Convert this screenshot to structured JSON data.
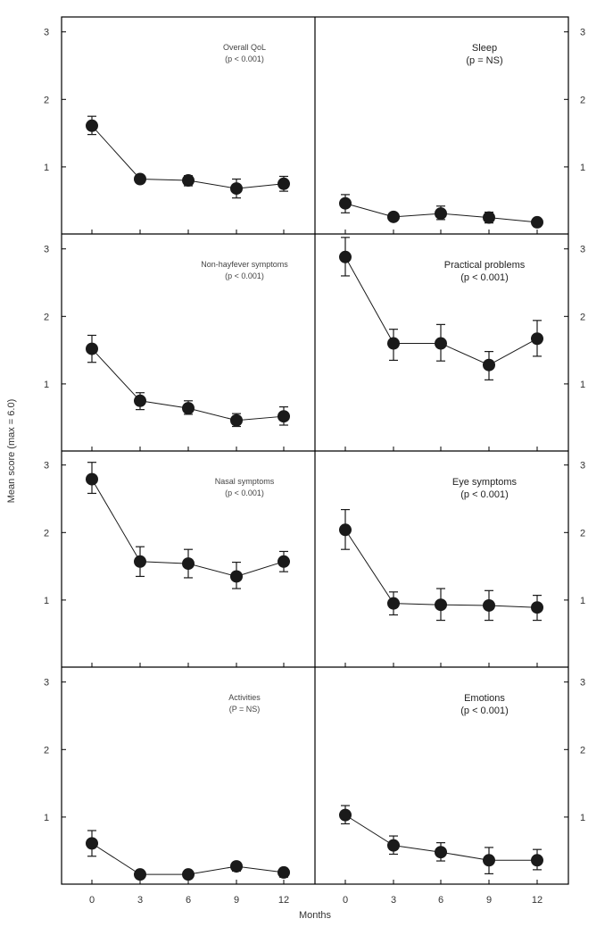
{
  "colors": {
    "ink": "#1a1a1a",
    "frame": "#000000"
  },
  "chart_data": {
    "type": "line",
    "xlabel": "Months",
    "ylabel": "Mean score (max = 6.0)",
    "x": [
      0,
      3,
      6,
      9,
      12
    ],
    "x_tick_labels": [
      "0",
      "3",
      "6",
      "9",
      "12"
    ],
    "y_tick_labels": [
      "1",
      "2",
      "3"
    ],
    "y_ticks": [
      1,
      2,
      3
    ],
    "ylim": [
      0,
      3.2
    ],
    "layout": "4 rows x 2 columns, shared axes",
    "panels": [
      {
        "title": "Overall QoL",
        "stat": "(p < 0.001)",
        "column": "left",
        "row": 1,
        "values": [
          1.61,
          0.82,
          0.8,
          0.68,
          0.75
        ],
        "err_low": [
          1.48,
          0.78,
          0.72,
          0.54,
          0.64
        ],
        "err_high": [
          1.75,
          0.86,
          0.87,
          0.82,
          0.86
        ]
      },
      {
        "title": "Sleep",
        "stat": "(p = NS)",
        "column": "right",
        "row": 1,
        "values": [
          0.46,
          0.26,
          0.31,
          0.25,
          0.18
        ],
        "err_low": [
          0.32,
          0.22,
          0.22,
          0.17,
          0.15
        ],
        "err_high": [
          0.59,
          0.3,
          0.42,
          0.33,
          0.21
        ]
      },
      {
        "title": "Non-hayfever symptoms",
        "stat": "(p < 0.001)",
        "column": "left",
        "row": 2,
        "values": [
          1.52,
          0.75,
          0.64,
          0.46,
          0.52
        ],
        "err_low": [
          1.32,
          0.62,
          0.55,
          0.37,
          0.39
        ],
        "err_high": [
          1.72,
          0.87,
          0.75,
          0.56,
          0.66
        ]
      },
      {
        "title": "Practical problems",
        "stat": "(p < 0.001)",
        "column": "right",
        "row": 2,
        "values": [
          2.88,
          1.6,
          1.6,
          1.28,
          1.67
        ],
        "err_low": [
          2.6,
          1.35,
          1.34,
          1.06,
          1.41
        ],
        "err_high": [
          3.17,
          1.81,
          1.88,
          1.48,
          1.94
        ]
      },
      {
        "title": "Nasal symptoms",
        "stat": "(p < 0.001)",
        "column": "left",
        "row": 3,
        "values": [
          2.79,
          1.57,
          1.54,
          1.35,
          1.57
        ],
        "err_low": [
          2.58,
          1.35,
          1.33,
          1.17,
          1.42
        ],
        "err_high": [
          3.04,
          1.79,
          1.75,
          1.56,
          1.72
        ]
      },
      {
        "title": "Eye symptoms",
        "stat": "(p < 0.001)",
        "column": "right",
        "row": 3,
        "values": [
          2.04,
          0.95,
          0.93,
          0.92,
          0.89
        ],
        "err_low": [
          1.75,
          0.78,
          0.7,
          0.7,
          0.7
        ],
        "err_high": [
          2.34,
          1.12,
          1.17,
          1.14,
          1.07
        ]
      },
      {
        "title": "Activities",
        "stat": "(P = NS)",
        "column": "left",
        "row": 4,
        "values": [
          0.61,
          0.15,
          0.15,
          0.27,
          0.18
        ],
        "err_low": [
          0.42,
          0.13,
          0.13,
          0.2,
          0.11
        ],
        "err_high": [
          0.8,
          0.17,
          0.17,
          0.33,
          0.24
        ]
      },
      {
        "title": "Emotions",
        "stat": "(p < 0.001)",
        "column": "right",
        "row": 4,
        "values": [
          1.03,
          0.58,
          0.48,
          0.36,
          0.36
        ],
        "err_low": [
          0.9,
          0.45,
          0.35,
          0.16,
          0.22
        ],
        "err_high": [
          1.17,
          0.72,
          0.62,
          0.55,
          0.52
        ]
      }
    ]
  }
}
